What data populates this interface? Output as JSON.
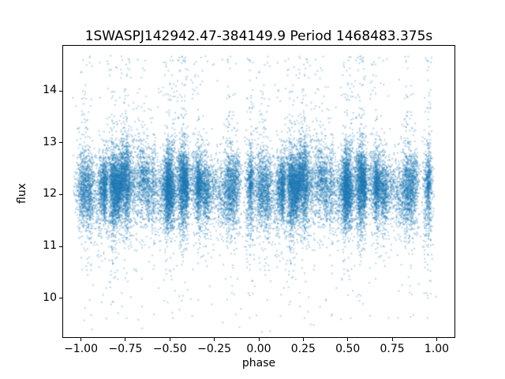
{
  "chart_data": {
    "type": "scatter",
    "title": "1SWASPJ142942.47-384149.9 Period 1468483.375s",
    "xlabel": "phase",
    "ylabel": "flux",
    "xlim": [
      -1.1,
      1.1
    ],
    "ylim": [
      9.25,
      14.87
    ],
    "xticks": [
      {
        "value": -1.0,
        "label": "−1.00"
      },
      {
        "value": -0.75,
        "label": "−0.75"
      },
      {
        "value": -0.5,
        "label": "−0.50"
      },
      {
        "value": -0.25,
        "label": "−0.25"
      },
      {
        "value": 0.0,
        "label": "0.00"
      },
      {
        "value": 0.25,
        "label": "0.25"
      },
      {
        "value": 0.5,
        "label": "0.50"
      },
      {
        "value": 0.75,
        "label": "0.75"
      },
      {
        "value": 1.0,
        "label": "1.00"
      }
    ],
    "yticks": [
      {
        "value": 10,
        "label": "10"
      },
      {
        "value": 11,
        "label": "11"
      },
      {
        "value": 12,
        "label": "12"
      },
      {
        "value": 13,
        "label": "13"
      },
      {
        "value": 14,
        "label": "14"
      }
    ],
    "grid": false,
    "legend": null,
    "point_color": "#1f77b4",
    "point_alpha": 0.3,
    "point_size": 2,
    "generator": {
      "comment": "Phase-folded light curve: ~14k photometric points duplicated over phase [0,1] and [-1,0]; dense band flux ~11.5-13.0 with vertical night-streaks, upward sprays to ~14.6 and downward sprays to ~9.4",
      "seed": 7,
      "n_streaks": 60,
      "points_min": 140,
      "points_max": 330,
      "mean_min": 11.9,
      "mean_max": 12.35,
      "core_std_min": 0.18,
      "core_std_max": 0.45,
      "streak_width_min": 0.006,
      "streak_width_max": 0.024,
      "tall_up_prob": 0.45,
      "tall_down_prob": 0.3,
      "n_outliers": 140,
      "flux_clip": [
        9.35,
        14.68
      ]
    }
  }
}
